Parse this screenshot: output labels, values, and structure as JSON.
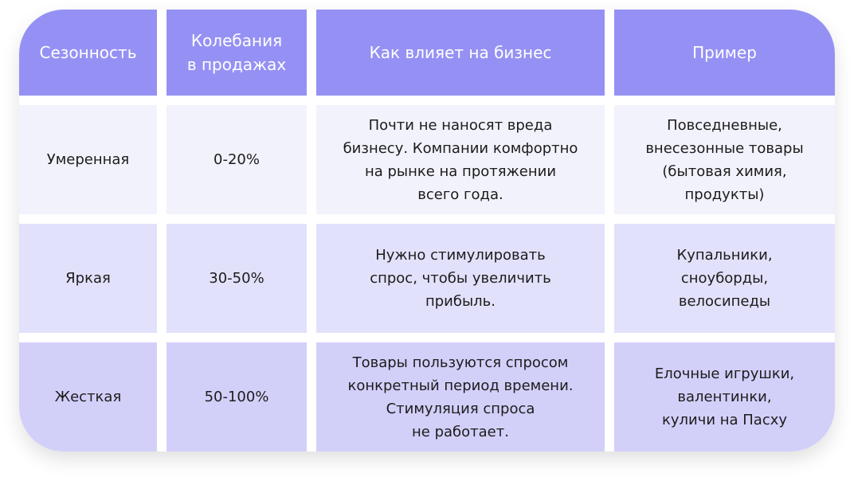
{
  "table": {
    "headers": [
      "Сезонность",
      "Колебания\nв продажах",
      "Как влияет на бизнес",
      "Пример"
    ],
    "rows": [
      [
        "Умеренная",
        "0-20%",
        "Почти не наносят вреда\nбизнесу. Компании комфортно\nна рынке на протяжении\nвсего года.",
        "Повседневные,\nвнесезонные товары\n(бытовая химия,\nпродукты)"
      ],
      [
        "Яркая",
        "30-50%",
        "Нужно стимулировать\nспрос, чтобы увеличить\nприбыль.",
        "Купальники,\nсноуборды,\nвелосипеды"
      ],
      [
        "Жесткая",
        "50-100%",
        "Товары пользуются спросом\nконкретный период времени.\nСтимуляция спроса\nне работает.",
        "Елочные игрушки,\nвалентинки,\nкуличи на Пасху"
      ]
    ]
  },
  "colors": {
    "header": "#9591f4",
    "row1": "#f2f2fc",
    "row2": "#e2e1fb",
    "row3": "#d2d0f9"
  }
}
